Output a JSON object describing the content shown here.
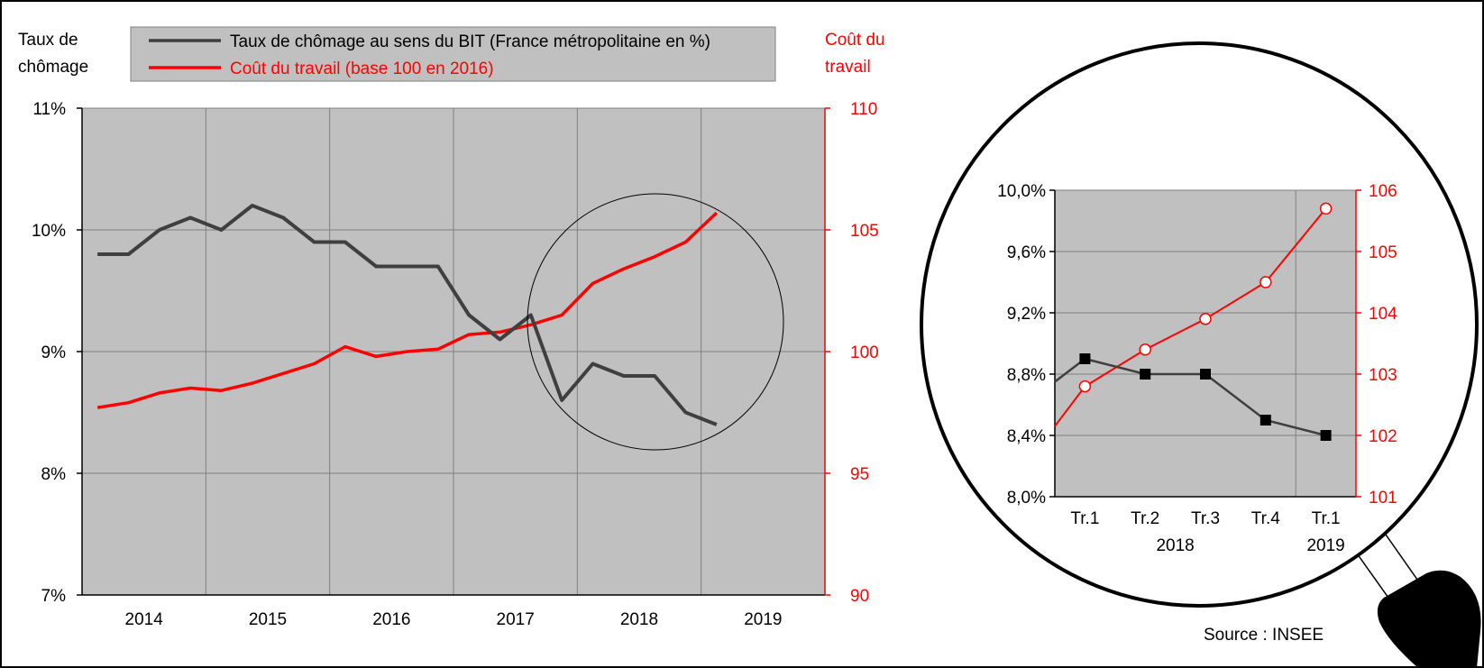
{
  "source_note": "Source : INSEE",
  "colors": {
    "unemployment": "#3f3f3f",
    "labour_cost": "#ff0000",
    "plot_bg": "#c0c0c0",
    "legend_bg": "#c0c0c0"
  },
  "chart_data": [
    {
      "type": "line",
      "left_axis_title": [
        "Taux de",
        "chômage"
      ],
      "right_axis_title": [
        "Coût du",
        "travail"
      ],
      "legend_position": "top",
      "grid": true,
      "left_ylim": [
        7,
        11
      ],
      "right_ylim": [
        90,
        110
      ],
      "left_ticks": [
        "7%",
        "8%",
        "9%",
        "10%",
        "11%"
      ],
      "right_ticks": [
        "90",
        "95",
        "100",
        "105",
        "110"
      ],
      "year_labels": [
        "2014",
        "2015",
        "2016",
        "2017",
        "2018",
        "2019"
      ],
      "x": [
        "2014-T1",
        "2014-T2",
        "2014-T3",
        "2014-T4",
        "2015-T1",
        "2015-T2",
        "2015-T3",
        "2015-T4",
        "2016-T1",
        "2016-T2",
        "2016-T3",
        "2016-T4",
        "2017-T1",
        "2017-T2",
        "2017-T3",
        "2017-T4",
        "2018-T1",
        "2018-T2",
        "2018-T3",
        "2018-T4",
        "2019-T1"
      ],
      "series": [
        {
          "name": "Taux de chômage au sens du BIT (France métropolitaine en %)",
          "axis": "left",
          "values": [
            9.8,
            9.8,
            10.0,
            10.1,
            10.0,
            10.2,
            10.1,
            9.9,
            9.9,
            9.7,
            9.7,
            9.7,
            9.3,
            9.1,
            9.3,
            8.6,
            8.9,
            8.8,
            8.8,
            8.5,
            8.4
          ]
        },
        {
          "name": "Coût du travail (base 100 en 2016)",
          "axis": "right",
          "values": [
            97.7,
            97.9,
            98.3,
            98.5,
            98.4,
            98.7,
            99.1,
            99.5,
            100.2,
            99.8,
            100.0,
            100.1,
            100.7,
            100.8,
            101.1,
            101.5,
            102.8,
            103.4,
            103.9,
            104.5,
            105.7
          ]
        }
      ],
      "highlight_circle_around": "2017-T3 to 2019-T1"
    },
    {
      "type": "line",
      "title": "zoom",
      "left_ylim": [
        8.0,
        10.0
      ],
      "right_ylim": [
        101,
        106
      ],
      "left_ticks": [
        "8,0%",
        "8,4%",
        "8,8%",
        "9,2%",
        "9,6%",
        "10,0%"
      ],
      "right_ticks": [
        "101",
        "102",
        "103",
        "104",
        "105",
        "106"
      ],
      "categories": [
        "Tr.1",
        "Tr.2",
        "Tr.3",
        "Tr.4",
        "Tr.1"
      ],
      "group_labels": [
        "2018",
        "2019"
      ],
      "series": [
        {
          "axis": "left",
          "values": [
            8.9,
            8.8,
            8.8,
            8.5,
            8.4
          ],
          "marker": "square"
        },
        {
          "axis": "right",
          "values": [
            102.8,
            103.4,
            103.9,
            104.5,
            105.7
          ],
          "marker": "circle-open"
        }
      ]
    }
  ]
}
